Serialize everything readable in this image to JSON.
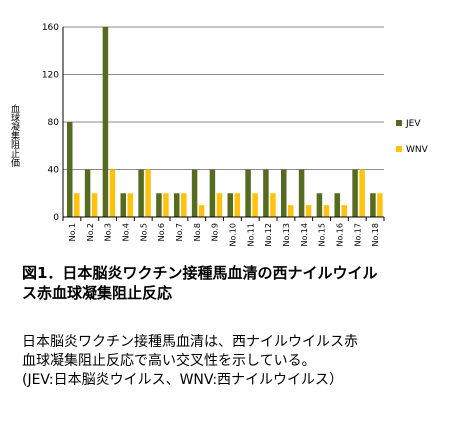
{
  "chart_data": {
    "type": "bar",
    "ylabel": "血球凝集阻止価",
    "ylim": [
      0,
      160
    ],
    "yticks": [
      0,
      40,
      80,
      120,
      160
    ],
    "grid": true,
    "legend_position": "right",
    "categories": [
      "No.1",
      "No.2",
      "No.3",
      "No.4",
      "No.5",
      "No.6",
      "No.7",
      "No.8",
      "No.9",
      "No.10",
      "No.11",
      "No.12",
      "No.13",
      "No.14",
      "No.15",
      "No.16",
      "No.17",
      "No.18"
    ],
    "series": [
      {
        "name": "JEV",
        "color": "#556b1f",
        "values": [
          80,
          40,
          160,
          20,
          40,
          20,
          20,
          40,
          40,
          20,
          40,
          40,
          40,
          40,
          20,
          20,
          40,
          20
        ]
      },
      {
        "name": "WNV",
        "color": "#ffc20e",
        "values": [
          20,
          20,
          40,
          20,
          40,
          20,
          20,
          10,
          20,
          20,
          20,
          20,
          10,
          10,
          10,
          10,
          40,
          20
        ]
      }
    ]
  },
  "caption": {
    "line1": "図1．日本脳炎ワクチン接種馬血清の西ナイルウイル",
    "line2": "ス赤血球凝集阻止反応"
  },
  "description": {
    "line1": "日本脳炎ワクチン接種馬血清は、西ナイルウイルス赤",
    "line2": "血球凝集阻止反応で高い交叉性を示している。",
    "line3": "(JEV:日本脳炎ウイルス、WNV:西ナイルウイルス）"
  }
}
